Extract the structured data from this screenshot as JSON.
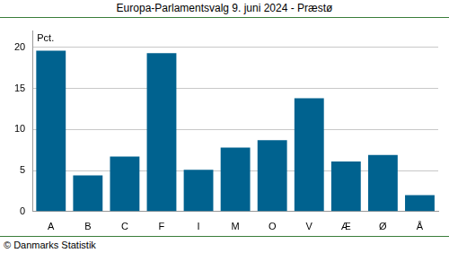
{
  "chart_data": {
    "type": "bar",
    "title": "Europa-Parlamentsvalg 9. juni 2024 - Præstø",
    "ylabel": "Pct.",
    "annotations": [
      "© Danmarks Statistik"
    ],
    "categories": [
      "A",
      "B",
      "C",
      "F",
      "I",
      "M",
      "O",
      "V",
      "Æ",
      "Ø",
      "Å"
    ],
    "values": [
      19.6,
      4.4,
      6.7,
      19.3,
      5.1,
      7.8,
      8.7,
      13.8,
      6.1,
      6.9,
      2.0
    ],
    "color": "#00628f",
    "ylim": [
      0,
      22
    ],
    "yticks": [
      0,
      5,
      10,
      15,
      20
    ],
    "grid": true
  }
}
